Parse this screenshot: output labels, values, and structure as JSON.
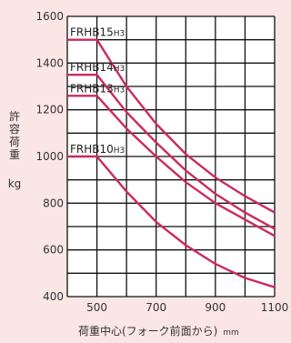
{
  "chart_data": {
    "type": "line",
    "title": "",
    "xlabel": "荷重中心(フォーク前面から)",
    "xunit": "mm",
    "ylabel_chars": [
      "許",
      "容",
      "荷",
      "重"
    ],
    "yunit": "kg",
    "xlim": [
      400,
      1100
    ],
    "ylim": [
      400,
      1600
    ],
    "xticks": [
      500,
      700,
      900,
      1100
    ],
    "xtick_labels": [
      "500",
      "700",
      "900",
      "1100"
    ],
    "yticks": [
      400,
      600,
      800,
      1000,
      1200,
      1400,
      1600
    ],
    "ytick_labels": [
      "400",
      "600",
      "800",
      "1000",
      "1200",
      "1400",
      "1600"
    ],
    "grid": true,
    "series": [
      {
        "name": "FRHB15H3",
        "label_main": "FRHB15",
        "label_sub": "H3",
        "x": [
          400,
          500,
          600,
          700,
          800,
          900,
          1000,
          1100
        ],
        "y": [
          1500,
          1500,
          1300,
          1140,
          1010,
          910,
          830,
          760
        ]
      },
      {
        "name": "FRHB14H3",
        "label_main": "FRHB14",
        "label_sub": "H3",
        "x": [
          400,
          500,
          600,
          700,
          800,
          900,
          1000,
          1100
        ],
        "y": [
          1350,
          1350,
          1190,
          1060,
          940,
          840,
          760,
          690
        ]
      },
      {
        "name": "FRHB13H3",
        "label_main": "FRHB13",
        "label_sub": "H3",
        "x": [
          400,
          500,
          600,
          700,
          800,
          900,
          1000,
          1100
        ],
        "y": [
          1260,
          1260,
          1120,
          1000,
          890,
          800,
          730,
          660
        ]
      },
      {
        "name": "FRHB10H3",
        "label_main": "FRHB10",
        "label_sub": "H3",
        "x": [
          400,
          500,
          600,
          700,
          800,
          900,
          1000,
          1100
        ],
        "y": [
          1000,
          1000,
          850,
          720,
          620,
          540,
          480,
          440
        ]
      }
    ],
    "colors": {
      "line": "#cc2a5a",
      "grid": "#111111",
      "background": "#fbe6e6",
      "plot": "#ffffff"
    }
  }
}
